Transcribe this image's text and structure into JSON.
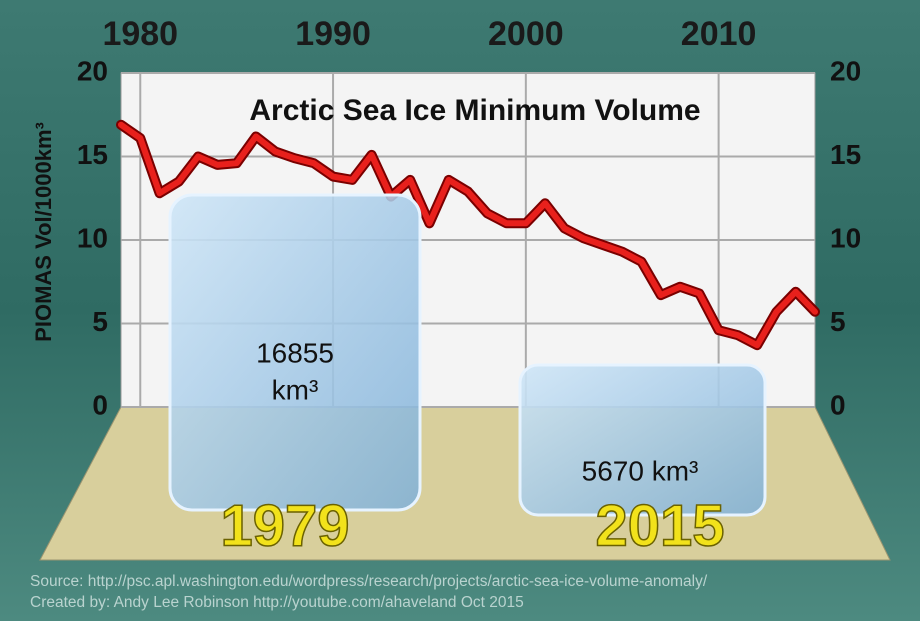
{
  "chart_data": {
    "type": "line",
    "title": "Arctic Sea Ice Minimum Volume",
    "y_label": "PIOMAS Vol/1000km³",
    "x": [
      1979,
      1980,
      1981,
      1982,
      1983,
      1984,
      1985,
      1986,
      1987,
      1988,
      1989,
      1990,
      1991,
      1992,
      1993,
      1994,
      1995,
      1996,
      1997,
      1998,
      1999,
      2000,
      2001,
      2002,
      2003,
      2004,
      2005,
      2006,
      2007,
      2008,
      2009,
      2010,
      2011,
      2012,
      2013,
      2014,
      2015
    ],
    "series": [
      {
        "name": "Minimum volume",
        "color": "#e8201c",
        "values": [
          16.9,
          16.1,
          12.8,
          13.5,
          15.0,
          14.5,
          14.6,
          16.2,
          15.3,
          14.9,
          14.6,
          13.8,
          13.6,
          15.1,
          12.6,
          13.6,
          11.0,
          13.6,
          12.9,
          11.6,
          11.0,
          11.0,
          12.2,
          10.7,
          10.1,
          9.7,
          9.3,
          8.7,
          6.7,
          7.2,
          6.8,
          4.6,
          4.3,
          3.7,
          5.7,
          6.9,
          5.7
        ]
      }
    ],
    "xlim": [
      1979,
      2015
    ],
    "xticks": [
      1980,
      1990,
      2000,
      2010
    ],
    "ylim": [
      0,
      20
    ],
    "yticks": [
      0,
      5,
      10,
      15,
      20
    ],
    "grid": true,
    "annotations": [
      "16855",
      "km³",
      "5670 km³",
      "1979",
      "2015"
    ],
    "source": [
      "Source: http://psc.apl.washington.edu/wordpress/research/projects/arctic-sea-ice-volume-anomaly/",
      "Created by: Andy Lee Robinson http://youtube.com/ahaveland Oct 2015"
    ]
  }
}
